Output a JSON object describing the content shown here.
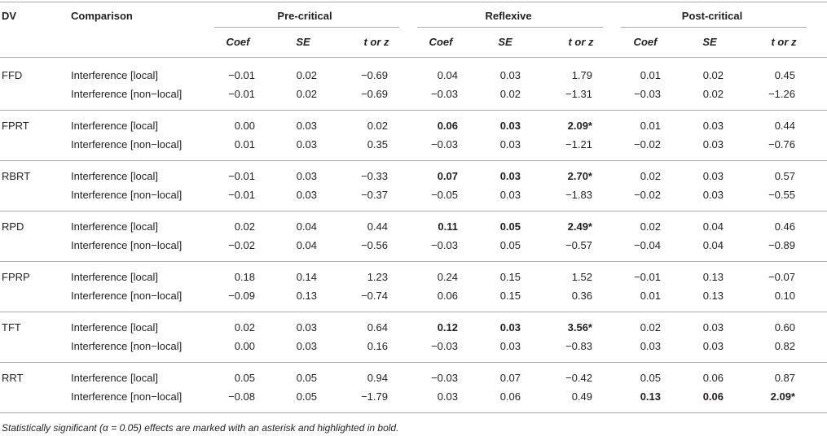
{
  "header": {
    "dv": "DV",
    "comparison": "Comparison",
    "groups": [
      "Pre-critical",
      "Reflexive",
      "Post-critical"
    ],
    "subcols": [
      "Coef",
      "SE",
      "t or z"
    ]
  },
  "groups": [
    {
      "dv": "FFD",
      "rows": [
        {
          "comparison": "Interference [local]",
          "values": [
            [
              "−0.01",
              "0.02",
              "−0.69"
            ],
            [
              "0.04",
              "0.03",
              "1.79"
            ],
            [
              "0.01",
              "0.02",
              "0.45"
            ]
          ],
          "sig": [
            false,
            false,
            false
          ]
        },
        {
          "comparison": "Interference [non−local]",
          "values": [
            [
              "−0.01",
              "0.02",
              "−0.69"
            ],
            [
              "−0.03",
              "0.02",
              "−1.31"
            ],
            [
              "−0.03",
              "0.02",
              "−1.26"
            ]
          ],
          "sig": [
            false,
            false,
            false
          ]
        }
      ]
    },
    {
      "dv": "FPRT",
      "rows": [
        {
          "comparison": "Interference [local]",
          "values": [
            [
              "0.00",
              "0.03",
              "0.02"
            ],
            [
              "0.06",
              "0.03",
              "2.09*"
            ],
            [
              "0.01",
              "0.03",
              "0.44"
            ]
          ],
          "sig": [
            false,
            true,
            false
          ]
        },
        {
          "comparison": "Interference [non−local]",
          "values": [
            [
              "0.01",
              "0.03",
              "0.35"
            ],
            [
              "−0.03",
              "0.03",
              "−1.21"
            ],
            [
              "−0.02",
              "0.03",
              "−0.76"
            ]
          ],
          "sig": [
            false,
            false,
            false
          ]
        }
      ]
    },
    {
      "dv": "RBRT",
      "rows": [
        {
          "comparison": "Interference [local]",
          "values": [
            [
              "−0.01",
              "0.03",
              "−0.33"
            ],
            [
              "0.07",
              "0.03",
              "2.70*"
            ],
            [
              "0.02",
              "0.03",
              "0.57"
            ]
          ],
          "sig": [
            false,
            true,
            false
          ]
        },
        {
          "comparison": "Interference [non−local]",
          "values": [
            [
              "−0.01",
              "0.03",
              "−0.37"
            ],
            [
              "−0.05",
              "0.03",
              "−1.83"
            ],
            [
              "−0.02",
              "0.03",
              "−0.55"
            ]
          ],
          "sig": [
            false,
            false,
            false
          ]
        }
      ]
    },
    {
      "dv": "RPD",
      "rows": [
        {
          "comparison": "Interference [local]",
          "values": [
            [
              "0.02",
              "0.04",
              "0.44"
            ],
            [
              "0.11",
              "0.05",
              "2.49*"
            ],
            [
              "0.02",
              "0.04",
              "0.46"
            ]
          ],
          "sig": [
            false,
            true,
            false
          ]
        },
        {
          "comparison": "Interference [non−local]",
          "values": [
            [
              "−0.02",
              "0.04",
              "−0.56"
            ],
            [
              "−0.03",
              "0.05",
              "−0.57"
            ],
            [
              "−0.04",
              "0.04",
              "−0.89"
            ]
          ],
          "sig": [
            false,
            false,
            false
          ]
        }
      ]
    },
    {
      "dv": "FPRP",
      "rows": [
        {
          "comparison": "Interference [local]",
          "values": [
            [
              "0.18",
              "0.14",
              "1.23"
            ],
            [
              "0.24",
              "0.15",
              "1.52"
            ],
            [
              "−0.01",
              "0.13",
              "−0.07"
            ]
          ],
          "sig": [
            false,
            false,
            false
          ]
        },
        {
          "comparison": "Interference [non−local]",
          "values": [
            [
              "−0.09",
              "0.13",
              "−0.74"
            ],
            [
              "0.06",
              "0.15",
              "0.36"
            ],
            [
              "0.01",
              "0.13",
              "0.10"
            ]
          ],
          "sig": [
            false,
            false,
            false
          ]
        }
      ]
    },
    {
      "dv": "TFT",
      "rows": [
        {
          "comparison": "Interference [local]",
          "values": [
            [
              "0.02",
              "0.03",
              "0.64"
            ],
            [
              "0.12",
              "0.03",
              "3.56*"
            ],
            [
              "0.02",
              "0.03",
              "0.60"
            ]
          ],
          "sig": [
            false,
            true,
            false
          ]
        },
        {
          "comparison": "Interference [non−local]",
          "values": [
            [
              "0.00",
              "0.03",
              "0.16"
            ],
            [
              "−0.03",
              "0.03",
              "−0.83"
            ],
            [
              "0.03",
              "0.03",
              "0.82"
            ]
          ],
          "sig": [
            false,
            false,
            false
          ]
        }
      ]
    },
    {
      "dv": "RRT",
      "rows": [
        {
          "comparison": "Interference [local]",
          "values": [
            [
              "0.05",
              "0.05",
              "0.94"
            ],
            [
              "−0.03",
              "0.07",
              "−0.42"
            ],
            [
              "0.05",
              "0.06",
              "0.87"
            ]
          ],
          "sig": [
            false,
            false,
            false
          ]
        },
        {
          "comparison": "Interference [non−local]",
          "values": [
            [
              "−0.08",
              "0.05",
              "−1.79"
            ],
            [
              "0.03",
              "0.06",
              "0.49"
            ],
            [
              "0.13",
              "0.06",
              "2.09*"
            ]
          ],
          "sig": [
            false,
            false,
            true
          ]
        }
      ]
    }
  ],
  "footnote": "Statistically significant (α = 0.05) effects are marked with an asterisk and highlighted in bold."
}
